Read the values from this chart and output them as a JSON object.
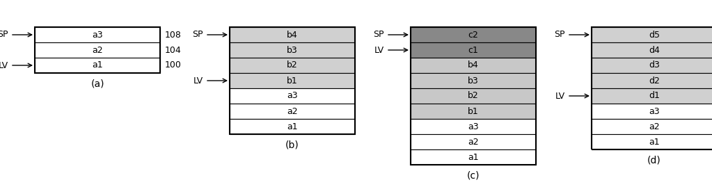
{
  "panels": [
    {
      "label": "(a)",
      "cells": [
        "a3",
        "a2",
        "a1"
      ],
      "colors": [
        "#ffffff",
        "#ffffff",
        "#ffffff"
      ],
      "sp_row": 0,
      "lv_row": 2,
      "show_addresses": true,
      "addresses": [
        "108",
        "104",
        "100"
      ],
      "x_center": 1.4,
      "box_width": 1.8
    },
    {
      "label": "(b)",
      "cells": [
        "b4",
        "b3",
        "b2",
        "b1",
        "a3",
        "a2",
        "a1"
      ],
      "colors": [
        "#d0d0d0",
        "#d0d0d0",
        "#d0d0d0",
        "#d0d0d0",
        "#ffffff",
        "#ffffff",
        "#ffffff"
      ],
      "sp_row": 0,
      "lv_row": 3,
      "show_addresses": false,
      "addresses": [],
      "x_center": 4.2,
      "box_width": 1.8
    },
    {
      "label": "(c)",
      "cells": [
        "c2",
        "c1",
        "b4",
        "b3",
        "b2",
        "b1",
        "a3",
        "a2",
        "a1"
      ],
      "colors": [
        "#888888",
        "#888888",
        "#c8c8c8",
        "#c8c8c8",
        "#c8c8c8",
        "#c8c8c8",
        "#ffffff",
        "#ffffff",
        "#ffffff"
      ],
      "sp_row": 0,
      "lv_row": 1,
      "show_addresses": false,
      "addresses": [],
      "x_center": 6.8,
      "box_width": 1.8
    },
    {
      "label": "(d)",
      "cells": [
        "d5",
        "d4",
        "d3",
        "d2",
        "d1",
        "a3",
        "a2",
        "a1"
      ],
      "colors": [
        "#d0d0d0",
        "#d0d0d0",
        "#d0d0d0",
        "#d0d0d0",
        "#d0d0d0",
        "#ffffff",
        "#ffffff",
        "#ffffff"
      ],
      "sp_row": 0,
      "lv_row": 4,
      "show_addresses": false,
      "addresses": [],
      "x_center": 9.4,
      "box_width": 1.8
    }
  ],
  "cell_height": 0.22,
  "stack_top": 2.3,
  "figure_bg": "#ffffff",
  "border_color": "#000000",
  "text_color": "#000000",
  "label_fontsize": 10,
  "cell_fontsize": 9,
  "arrow_fontsize": 9,
  "fig_width": 10.23,
  "fig_height": 2.69,
  "dpi": 100,
  "xlim": [
    0,
    10.23
  ],
  "ylim": [
    0,
    2.69
  ]
}
